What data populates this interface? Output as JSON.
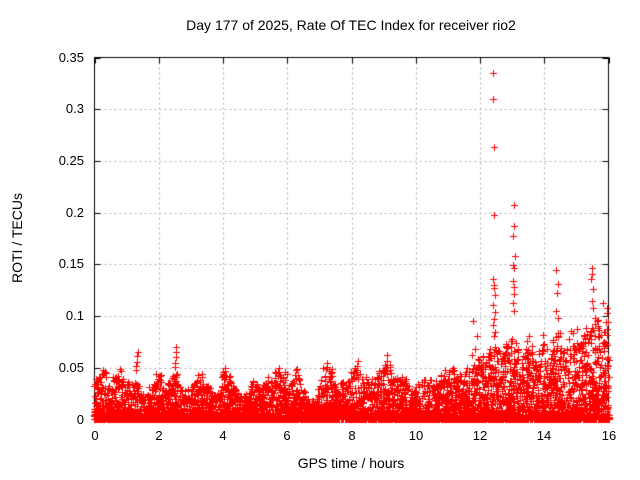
{
  "chart_data": {
    "type": "scatter",
    "title": "Day 177 of 2025, Rate Of TEC Index for receiver rio2",
    "xlabel": "GPS time / hours",
    "ylabel": "ROTI / TECUs",
    "xlim": [
      0,
      16
    ],
    "ylim": [
      0,
      0.35
    ],
    "xticks": [
      0,
      2,
      4,
      6,
      8,
      10,
      12,
      14,
      16
    ],
    "xtick_labels": [
      "0",
      "2",
      "4",
      "6",
      "8",
      "10",
      "12",
      "14",
      "16"
    ],
    "yticks": [
      0,
      0.05,
      0.1,
      0.15,
      0.2,
      0.25,
      0.3,
      0.35
    ],
    "ytick_labels": [
      "0",
      "0.05",
      "0.1",
      "0.15",
      "0.2",
      "0.25",
      "0.3",
      "0.35"
    ],
    "grid": "dashed",
    "grid_color": "#b0b0b0",
    "border_color": "#000000",
    "legend": "none",
    "marker": "plus",
    "marker_color": "#ff0000",
    "marker_size_px": 7,
    "envelope_points": [
      [
        0.0,
        0.032
      ],
      [
        0.1,
        0.046
      ],
      [
        0.25,
        0.042
      ],
      [
        0.35,
        0.048
      ],
      [
        0.5,
        0.028
      ],
      [
        0.65,
        0.042
      ],
      [
        0.8,
        0.048
      ],
      [
        0.95,
        0.032
      ],
      [
        1.1,
        0.036
      ],
      [
        1.25,
        0.044
      ],
      [
        1.45,
        0.032
      ],
      [
        1.6,
        0.02
      ],
      [
        1.75,
        0.03
      ],
      [
        1.9,
        0.043
      ],
      [
        2.05,
        0.04
      ],
      [
        2.2,
        0.028
      ],
      [
        2.35,
        0.042
      ],
      [
        2.5,
        0.046
      ],
      [
        2.7,
        0.034
      ],
      [
        2.85,
        0.024
      ],
      [
        3.0,
        0.032
      ],
      [
        3.2,
        0.046
      ],
      [
        3.4,
        0.042
      ],
      [
        3.6,
        0.03
      ],
      [
        3.8,
        0.022
      ],
      [
        4.0,
        0.042
      ],
      [
        4.2,
        0.046
      ],
      [
        4.4,
        0.03
      ],
      [
        4.6,
        0.022
      ],
      [
        4.8,
        0.028
      ],
      [
        5.0,
        0.036
      ],
      [
        5.2,
        0.03
      ],
      [
        5.4,
        0.038
      ],
      [
        5.6,
        0.044
      ],
      [
        5.9,
        0.048
      ],
      [
        6.1,
        0.038
      ],
      [
        6.3,
        0.046
      ],
      [
        6.5,
        0.03
      ],
      [
        6.7,
        0.014
      ],
      [
        6.9,
        0.018
      ],
      [
        7.1,
        0.044
      ],
      [
        7.25,
        0.056
      ],
      [
        7.4,
        0.042
      ],
      [
        7.6,
        0.028
      ],
      [
        7.8,
        0.04
      ],
      [
        8.0,
        0.042
      ],
      [
        8.2,
        0.048
      ],
      [
        8.4,
        0.038
      ],
      [
        8.6,
        0.034
      ],
      [
        8.8,
        0.042
      ],
      [
        9.0,
        0.05
      ],
      [
        9.15,
        0.056
      ],
      [
        9.3,
        0.044
      ],
      [
        9.5,
        0.038
      ],
      [
        9.7,
        0.034
      ],
      [
        9.9,
        0.028
      ],
      [
        10.1,
        0.034
      ],
      [
        10.3,
        0.042
      ],
      [
        10.5,
        0.034
      ],
      [
        10.7,
        0.04
      ],
      [
        10.9,
        0.044
      ],
      [
        11.1,
        0.05
      ],
      [
        11.3,
        0.044
      ],
      [
        11.5,
        0.04
      ],
      [
        11.7,
        0.048
      ],
      [
        11.9,
        0.054
      ],
      [
        12.1,
        0.058
      ],
      [
        12.3,
        0.068
      ],
      [
        12.5,
        0.075
      ],
      [
        12.7,
        0.062
      ],
      [
        12.9,
        0.07
      ],
      [
        13.1,
        0.074
      ],
      [
        13.25,
        0.058
      ],
      [
        13.4,
        0.072
      ],
      [
        13.55,
        0.075
      ],
      [
        13.7,
        0.052
      ],
      [
        13.85,
        0.064
      ],
      [
        14.0,
        0.068
      ],
      [
        14.15,
        0.06
      ],
      [
        14.3,
        0.078
      ],
      [
        14.5,
        0.084
      ],
      [
        14.65,
        0.068
      ],
      [
        14.8,
        0.074
      ],
      [
        15.0,
        0.08
      ],
      [
        15.15,
        0.076
      ],
      [
        15.3,
        0.084
      ],
      [
        15.45,
        0.09
      ],
      [
        15.6,
        0.088
      ],
      [
        15.75,
        0.094
      ],
      [
        15.9,
        0.1
      ],
      [
        16.0,
        0.096
      ]
    ],
    "outlier_points": [
      [
        1.3,
        0.052
      ],
      [
        1.32,
        0.056
      ],
      [
        1.33,
        0.061
      ],
      [
        1.34,
        0.065
      ],
      [
        2.5,
        0.051
      ],
      [
        2.52,
        0.055
      ],
      [
        2.54,
        0.06
      ],
      [
        2.53,
        0.065
      ],
      [
        2.55,
        0.07
      ],
      [
        4.05,
        0.05
      ],
      [
        7.25,
        0.055
      ],
      [
        8.18,
        0.052
      ],
      [
        8.2,
        0.057
      ],
      [
        9.1,
        0.057
      ],
      [
        9.12,
        0.062
      ],
      [
        11.75,
        0.062
      ],
      [
        11.79,
        0.095
      ],
      [
        11.85,
        0.068
      ],
      [
        11.92,
        0.081
      ],
      [
        12.41,
        0.335
      ],
      [
        12.41,
        0.31
      ],
      [
        12.44,
        0.263
      ],
      [
        12.44,
        0.198
      ],
      [
        12.42,
        0.136
      ],
      [
        12.45,
        0.13
      ],
      [
        12.43,
        0.127
      ],
      [
        12.46,
        0.12
      ],
      [
        12.42,
        0.111
      ],
      [
        12.47,
        0.104
      ],
      [
        12.44,
        0.097
      ],
      [
        12.4,
        0.091
      ],
      [
        12.46,
        0.085
      ],
      [
        12.43,
        0.081
      ],
      [
        13.07,
        0.207
      ],
      [
        13.05,
        0.187
      ],
      [
        13.02,
        0.177
      ],
      [
        13.08,
        0.158
      ],
      [
        13.04,
        0.149
      ],
      [
        13.06,
        0.146
      ],
      [
        13.03,
        0.134
      ],
      [
        13.07,
        0.128
      ],
      [
        13.05,
        0.121
      ],
      [
        13.02,
        0.113
      ],
      [
        13.06,
        0.105
      ],
      [
        13.95,
        0.082
      ],
      [
        14.38,
        0.145
      ],
      [
        14.42,
        0.131
      ],
      [
        14.4,
        0.122
      ],
      [
        14.37,
        0.105
      ],
      [
        14.43,
        0.098
      ],
      [
        15.48,
        0.146
      ],
      [
        15.5,
        0.141
      ],
      [
        15.47,
        0.136
      ],
      [
        15.52,
        0.126
      ],
      [
        15.49,
        0.115
      ],
      [
        15.51,
        0.108
      ],
      [
        15.82,
        0.113
      ],
      [
        15.95,
        0.108
      ]
    ]
  }
}
